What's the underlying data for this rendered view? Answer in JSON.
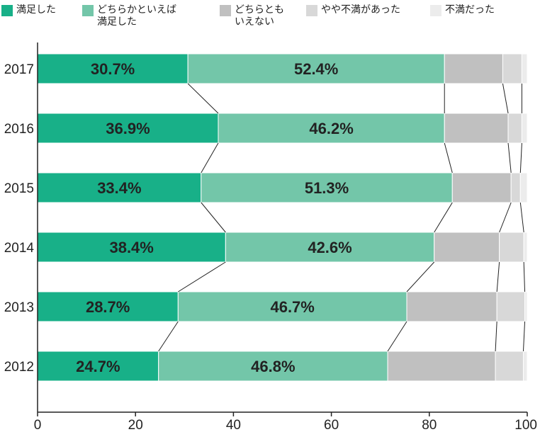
{
  "chart_data": {
    "type": "bar",
    "orientation": "horizontal",
    "stacked": true,
    "categories": [
      "2017",
      "2016",
      "2015",
      "2014",
      "2013",
      "2012"
    ],
    "series": [
      {
        "name": "満足した",
        "color": "#18b088",
        "values": [
          30.7,
          36.9,
          33.4,
          38.4,
          28.7,
          24.7
        ]
      },
      {
        "name": "どちらかといえば\n満足した",
        "color": "#73c6a9",
        "values": [
          52.4,
          46.2,
          51.3,
          42.6,
          46.7,
          46.8
        ]
      },
      {
        "name": "どちらとも\nいえない",
        "color": "#c0c0c0",
        "values": [
          11.9,
          13.0,
          12.0,
          13.3,
          18.4,
          22.0
        ]
      },
      {
        "name": "やや不満があった",
        "color": "#d8d8d8",
        "values": [
          3.9,
          2.8,
          1.9,
          5.0,
          5.7,
          5.7
        ]
      },
      {
        "name": "不満だった",
        "color": "#ececec",
        "values": [
          1.1,
          1.1,
          1.4,
          0.7,
          0.5,
          0.8
        ]
      }
    ],
    "data_labels": [
      [
        "30.7%",
        "36.9%",
        "33.4%",
        "38.4%",
        "28.7%",
        "24.7%"
      ],
      [
        "52.4%",
        "46.2%",
        "51.3%",
        "42.6%",
        "46.7%",
        "46.8%"
      ]
    ],
    "xlim": [
      0,
      100
    ],
    "xticks": [
      0,
      20,
      40,
      60,
      80,
      100
    ],
    "xlabel": "",
    "ylabel": "",
    "title": "",
    "grid": false,
    "legend_position": "top",
    "connector_lines": true
  }
}
